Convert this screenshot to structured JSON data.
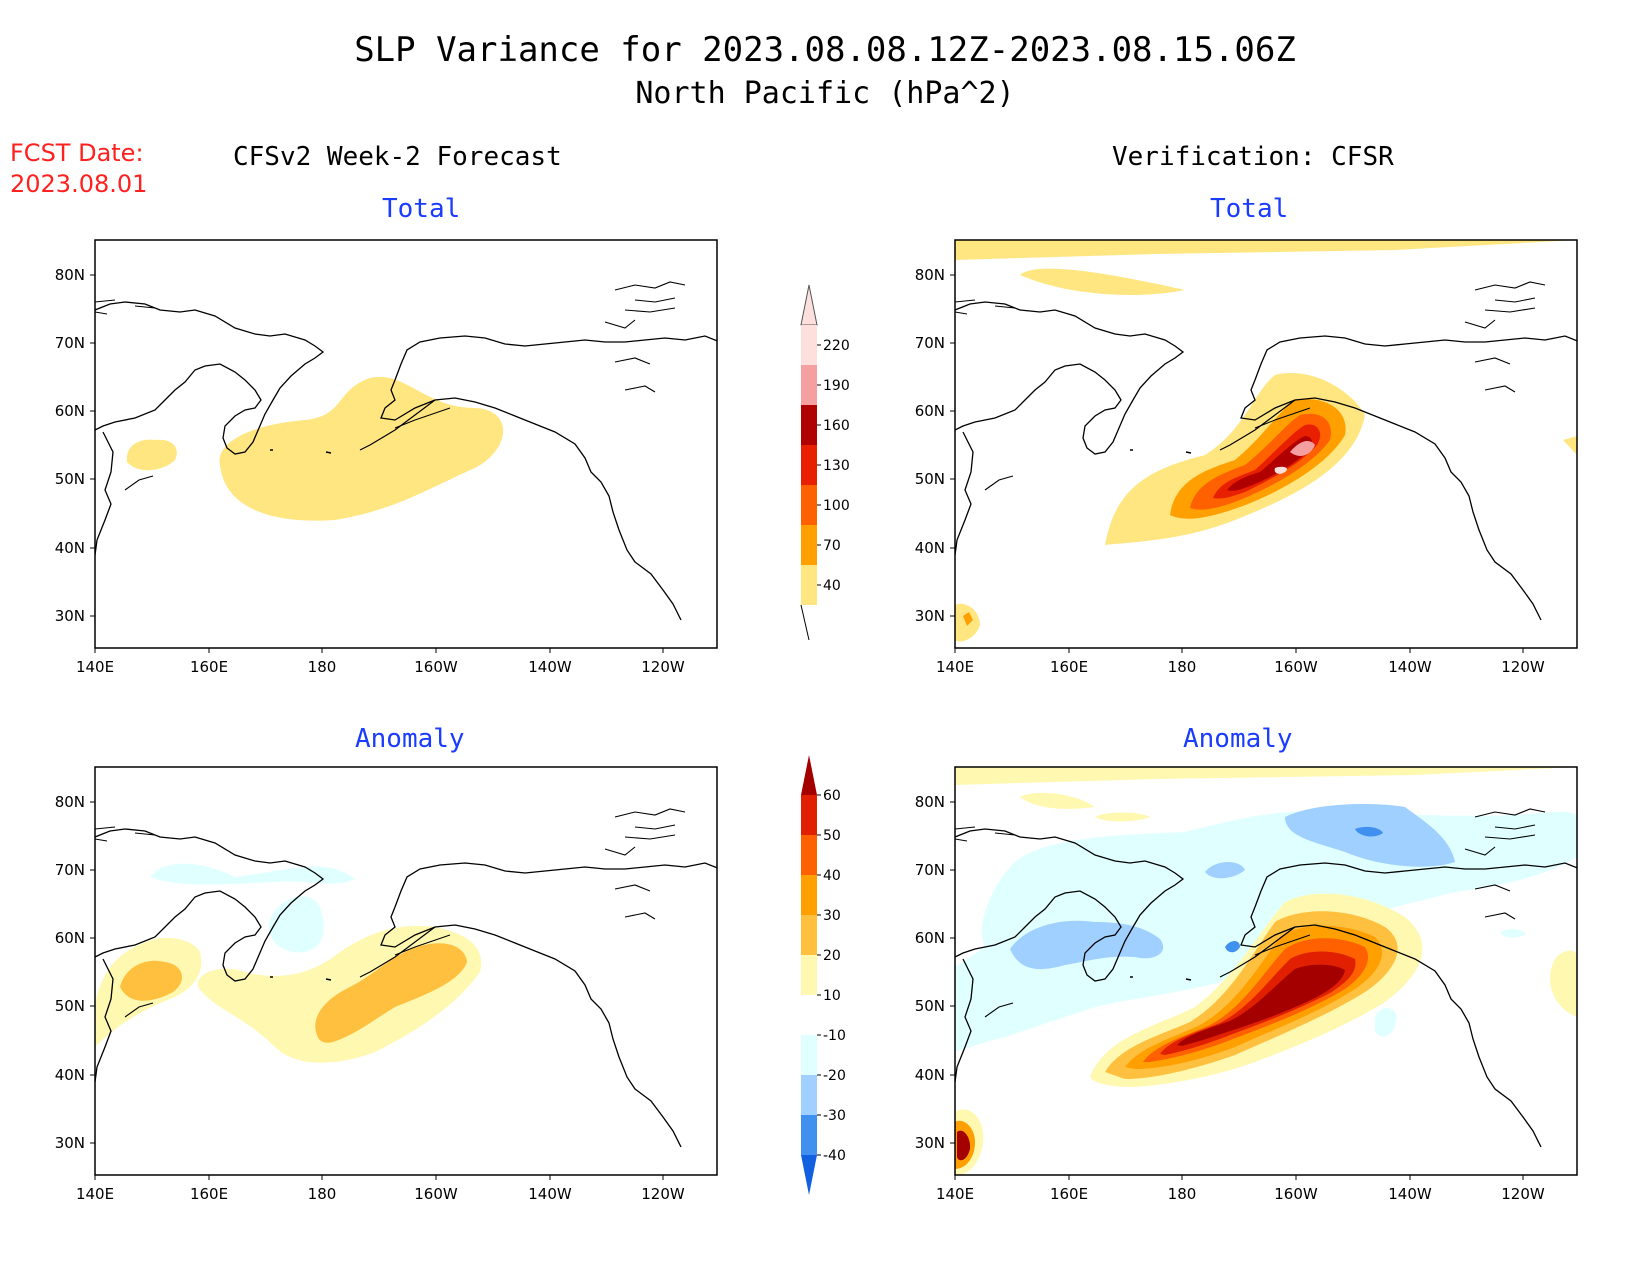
{
  "header": {
    "title_line1": "SLP Variance for 2023.08.08.12Z-2023.08.15.06Z",
    "title_line2": "North Pacific (hPa^2)",
    "fcst_label": "FCST Date:",
    "fcst_date": "2023.08.01"
  },
  "columns": {
    "left": "CFSv2 Week-2 Forecast",
    "right": "Verification: CFSR"
  },
  "panels": [
    {
      "title": "Total"
    },
    {
      "title": "Total"
    },
    {
      "title": "Anomaly"
    },
    {
      "title": "Anomaly"
    }
  ],
  "axes": {
    "lat_labels": [
      "80N",
      "70N",
      "60N",
      "50N",
      "40N",
      "30N"
    ],
    "lon_labels": [
      "140E",
      "160E",
      "180",
      "160W",
      "140W",
      "120W"
    ]
  },
  "colorbar_total": {
    "levels": [
      "220",
      "190",
      "160",
      "130",
      "100",
      "70",
      "40"
    ],
    "colors": [
      "#fde0dd",
      "#f4a0a0",
      "#b00000",
      "#e82000",
      "#ff6000",
      "#ffa000",
      "#ffe680"
    ]
  },
  "colorbar_anomaly": {
    "levels": [
      "60",
      "50",
      "40",
      "30",
      "20",
      "10",
      "-10",
      "-20",
      "-30",
      "-40"
    ],
    "colors": [
      "#a50000",
      "#e02000",
      "#ff6000",
      "#ffa000",
      "#ffc040",
      "#fff8b0",
      "#ffffff",
      "#e0ffff",
      "#a0d0ff",
      "#4090f0",
      "#1060e0"
    ]
  }
}
